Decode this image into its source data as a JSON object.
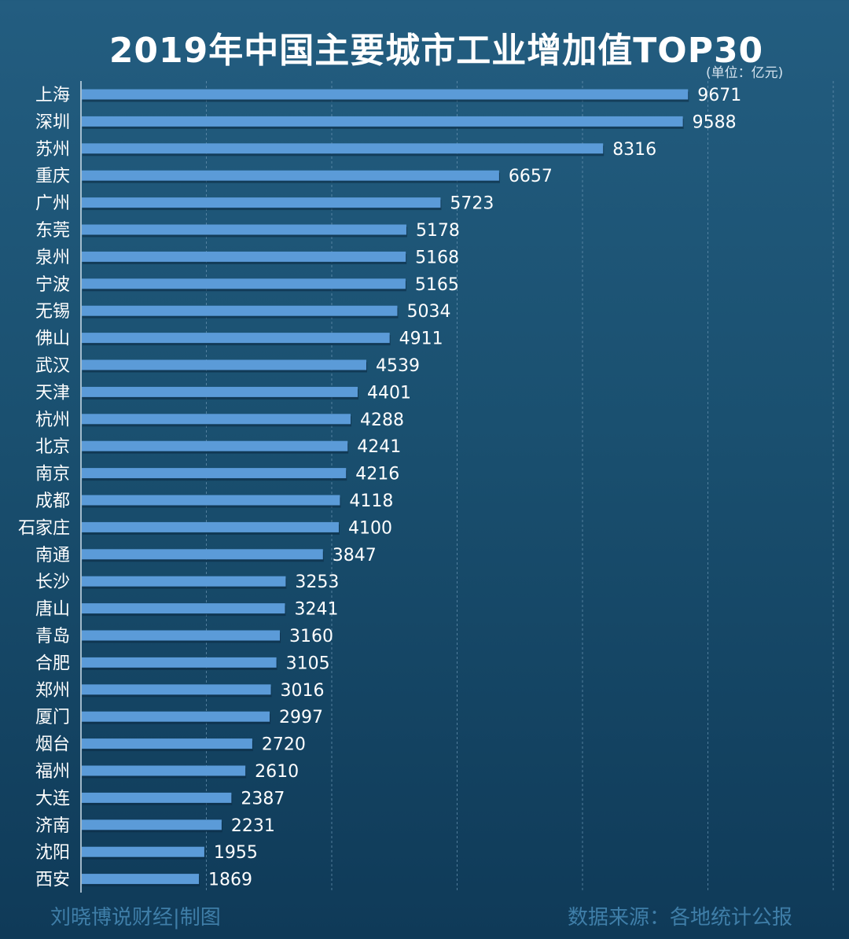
{
  "chart_data": {
    "type": "bar",
    "orientation": "horizontal",
    "title": "2019年中国主要城市工业增加值TOP30",
    "unit": "(单位：亿元)",
    "categories": [
      "上海",
      "深圳",
      "苏州",
      "重庆",
      "广州",
      "东莞",
      "泉州",
      "宁波",
      "无锡",
      "佛山",
      "武汉",
      "天津",
      "杭州",
      "北京",
      "南京",
      "成都",
      "石家庄",
      "南通",
      "长沙",
      "唐山",
      "青岛",
      "合肥",
      "郑州",
      "厦门",
      "烟台",
      "福州",
      "大连",
      "济南",
      "沈阳",
      "西安"
    ],
    "values": [
      9671,
      9588,
      8316,
      6657,
      5723,
      5178,
      5168,
      5165,
      5034,
      4911,
      4539,
      4401,
      4288,
      4241,
      4216,
      4118,
      4100,
      3847,
      3253,
      3241,
      3160,
      3105,
      3016,
      2997,
      2720,
      2610,
      2387,
      2231,
      1955,
      1869
    ],
    "xlim": [
      0,
      12000
    ],
    "grid": "vertical dashed",
    "legend": "none",
    "bar_color": "#5b9bd8",
    "background_color": "#1a5070"
  },
  "footer": {
    "credit": "刘晓博说财经|制图",
    "source": "数据来源：各地统计公报"
  }
}
